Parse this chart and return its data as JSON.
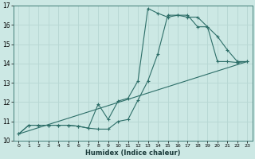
{
  "xlabel": "Humidex (Indice chaleur)",
  "bg_color": "#cce8e4",
  "line_color": "#2d6e68",
  "grid_color": "#b8d8d4",
  "xlim": [
    -0.5,
    23.5
  ],
  "ylim": [
    10,
    17
  ],
  "xticks": [
    0,
    1,
    2,
    3,
    4,
    5,
    6,
    7,
    8,
    9,
    10,
    11,
    12,
    13,
    14,
    15,
    16,
    17,
    18,
    19,
    20,
    21,
    22,
    23
  ],
  "yticks": [
    10,
    11,
    12,
    13,
    14,
    15,
    16,
    17
  ],
  "line1_x": [
    0,
    1,
    2,
    3,
    4,
    5,
    6,
    7,
    8,
    9,
    10,
    11,
    12,
    13,
    14,
    15,
    16,
    17,
    18,
    19,
    20,
    21,
    22,
    23
  ],
  "line1_y": [
    10.35,
    10.8,
    10.8,
    10.8,
    10.8,
    10.8,
    10.75,
    10.65,
    10.6,
    10.6,
    11.0,
    11.1,
    12.1,
    13.1,
    14.5,
    16.5,
    16.5,
    16.4,
    16.4,
    15.9,
    15.4,
    14.7,
    14.1,
    14.1
  ],
  "line2_x": [
    0,
    1,
    2,
    3,
    4,
    5,
    6,
    7,
    8,
    9,
    10,
    11,
    12,
    13,
    14,
    15,
    16,
    17,
    18,
    19,
    20,
    21,
    22,
    23
  ],
  "line2_y": [
    10.35,
    10.8,
    10.8,
    10.8,
    10.8,
    10.8,
    10.75,
    10.65,
    11.9,
    11.1,
    12.05,
    12.2,
    13.1,
    16.85,
    16.6,
    16.4,
    16.5,
    16.5,
    15.9,
    15.9,
    14.1,
    14.1,
    14.05,
    14.1
  ],
  "line3_x": [
    0,
    23
  ],
  "line3_y": [
    10.35,
    14.1
  ]
}
